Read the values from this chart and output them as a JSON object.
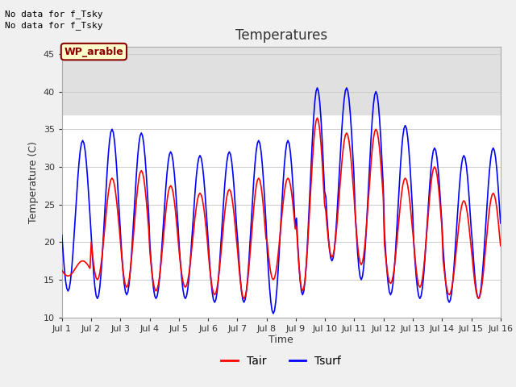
{
  "title": "Temperatures",
  "xlabel": "Time",
  "ylabel": "Temperature (C)",
  "ylim": [
    10,
    46
  ],
  "yticks": [
    10,
    15,
    20,
    25,
    30,
    35,
    40,
    45
  ],
  "background_color": "#f0f0f0",
  "plot_bg_color": "#ffffff",
  "shaded_band": [
    37.0,
    46
  ],
  "shaded_color": "#e0e0e0",
  "text_top_left": [
    "No data for f_Tsky",
    "No data for f_Tsky"
  ],
  "wp_label": "WP_arable",
  "legend_entries": [
    "Tair",
    "Tsurf"
  ],
  "tair_color": "red",
  "tsurf_color": "blue",
  "line_width": 1.2,
  "days": 15,
  "tair_day_max": [
    17.5,
    28.5,
    29.5,
    27.5,
    26.5,
    27.0,
    28.5,
    28.5,
    36.5,
    34.5,
    35.0,
    28.5,
    30.0,
    25.5,
    26.5
  ],
  "tair_day_min": [
    15.5,
    15.0,
    14.0,
    13.5,
    14.0,
    13.0,
    12.5,
    15.0,
    13.5,
    18.0,
    17.0,
    14.5,
    14.0,
    13.0,
    12.5
  ],
  "tsurf_day_max": [
    33.5,
    35.0,
    34.5,
    32.0,
    31.5,
    32.0,
    33.5,
    33.5,
    40.5,
    40.5,
    40.0,
    35.5,
    32.5,
    31.5,
    32.5
  ],
  "tsurf_day_min": [
    13.5,
    12.5,
    13.0,
    12.5,
    12.5,
    12.0,
    12.0,
    10.5,
    13.0,
    17.5,
    15.0,
    13.0,
    12.5,
    12.0,
    12.5
  ],
  "xtick_labels": [
    "Jul 1",
    "Jul 2",
    "Jul 3",
    "Jul 4",
    "Jul 5",
    "Jul 6",
    "Jul 7",
    "Jul 8",
    "Jul 9",
    "Jul 10",
    "Jul 11",
    "Jul 12",
    "Jul 13",
    "Jul 14",
    "Jul 15",
    "Jul 16"
  ]
}
